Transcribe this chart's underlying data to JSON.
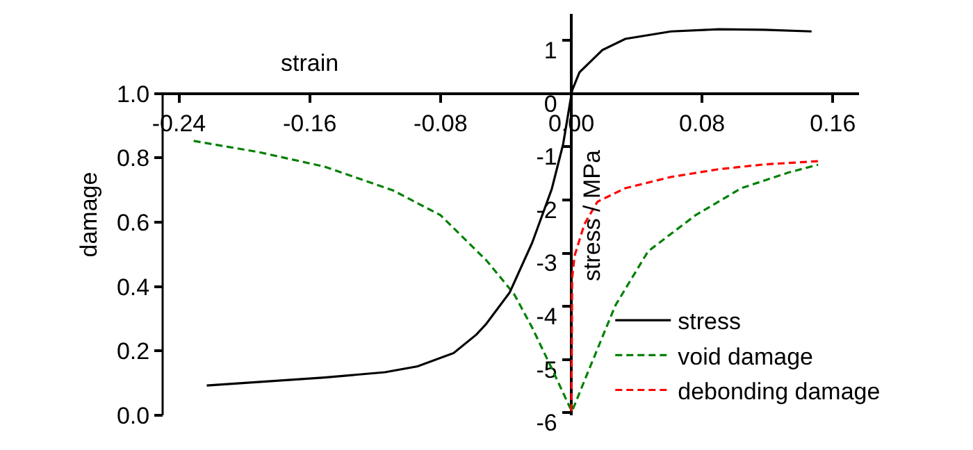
{
  "chart_data": {
    "type": "line",
    "xlabel": "strain",
    "ylabel": "damage",
    "y2label": "stress / MPa",
    "xlim": [
      -0.25,
      0.176
    ],
    "xticks": [
      {
        "value": -0.24,
        "label": "-0.24"
      },
      {
        "value": -0.16,
        "label": "-0.16"
      },
      {
        "value": -0.08,
        "label": "-0.08"
      },
      {
        "value": 0,
        "label": "0.00"
      },
      {
        "value": 0.08,
        "label": "0.08"
      },
      {
        "value": 0.16,
        "label": "0.16"
      }
    ],
    "ylim": [
      0,
      1
    ],
    "yticks": [
      {
        "value": 0,
        "label": "0.0"
      },
      {
        "value": 0.2,
        "label": "0.2"
      },
      {
        "value": 0.4,
        "label": "0.4"
      },
      {
        "value": 0.6,
        "label": "0.6"
      },
      {
        "value": 0.8,
        "label": "0.8"
      },
      {
        "value": 1,
        "label": "1.0"
      }
    ],
    "y2lim": [
      -6.05,
      1.5
    ],
    "y2ticks": [
      -6,
      -5,
      -4,
      -3,
      -2,
      -1,
      0,
      1
    ],
    "legend": "bottom right",
    "series": [
      {
        "name": "stress",
        "color": "#000000",
        "axis": "y2",
        "line_style": "solid",
        "x": [
          -0.223,
          -0.151,
          -0.114,
          -0.094,
          -0.072,
          -0.058,
          -0.052,
          -0.0377,
          -0.024,
          -0.012,
          -0.005,
          0.0005,
          0.005,
          0.019,
          0.033,
          0.061,
          0.09,
          0.118,
          0.147
        ],
        "values": [
          -5.49,
          -5.34,
          -5.24,
          -5.13,
          -4.88,
          -4.53,
          -4.33,
          -3.74,
          -2.81,
          -1.8,
          -0.95,
          0.06,
          0.4,
          0.82,
          1.03,
          1.17,
          1.21,
          1.2,
          1.17
        ]
      },
      {
        "name": "void damage",
        "color": "#008000",
        "line_style": "dashed",
        "x": [
          -0.231,
          -0.191,
          -0.151,
          -0.109,
          -0.08,
          -0.066,
          -0.052,
          -0.035,
          -0.024,
          -0.012,
          -0.001,
          0.0005,
          0.01,
          0.027,
          0.047,
          0.076,
          0.104,
          0.133,
          0.151
        ],
        "values": [
          0.853,
          0.818,
          0.773,
          0.699,
          0.622,
          0.552,
          0.482,
          0.377,
          0.273,
          0.146,
          0.026,
          0.013,
          0.132,
          0.342,
          0.51,
          0.622,
          0.706,
          0.755,
          0.779
        ]
      },
      {
        "name": "debonding damage",
        "color": "#ff0000",
        "line_style": "dashed",
        "x": [
          0,
          0.0003,
          0.0005,
          0.002,
          0.008,
          0.016,
          0.033,
          0.061,
          0.09,
          0.118,
          0.151
        ],
        "values": [
          0.013,
          0.2,
          0.426,
          0.496,
          0.594,
          0.664,
          0.706,
          0.741,
          0.765,
          0.78,
          0.79
        ]
      }
    ]
  }
}
